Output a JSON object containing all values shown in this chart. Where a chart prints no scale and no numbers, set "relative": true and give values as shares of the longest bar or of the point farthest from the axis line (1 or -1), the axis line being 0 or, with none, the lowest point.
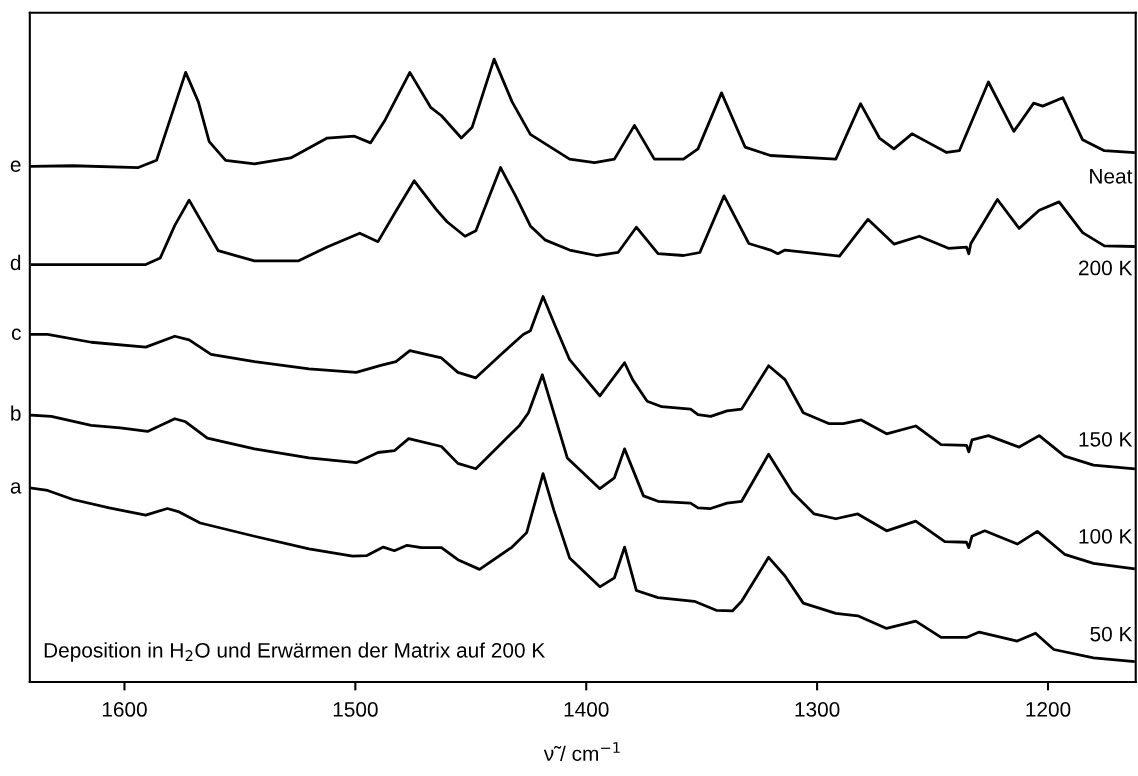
{
  "chart_data": {
    "type": "line",
    "relative": true,
    "xlabel": "ν̃ / cm$^{−1}$",
    "xlim": [
      1641,
      1162
    ],
    "xticks": [
      1600,
      1500,
      1400,
      1300,
      1200
    ],
    "grid": false,
    "legend": false,
    "marker": "none",
    "line_style": "solid",
    "tick_labels": "x",
    "series": [
      {
        "name": "e",
        "color": "#000000",
        "x": [
          1640.3,
          1622.3,
          1594.0,
          1586.1,
          1579.8,
          1573.5,
          1568.0,
          1563.3,
          1556.2,
          1543.7,
          1528.0,
          1512.2,
          1500.4,
          1493.4,
          1487.1,
          1476.4,
          1467.4,
          1462.7,
          1454.1,
          1449.4,
          1439.9,
          1432.1,
          1424.2,
          1407.2,
          1396.4,
          1387.8,
          1379.1,
          1370.5,
          1357.9,
          1351.6,
          1341.4,
          1331.2,
          1320.2,
          1291.9,
          1281.2,
          1273.0,
          1266.7,
          1258.9,
          1252.6,
          1243.9,
          1238.4,
          1225.8,
          1214.8,
          1206.2,
          1202.3,
          1193.6,
          1185.0,
          1175.6,
          1163.0
        ],
        "values": [
          0.822,
          0.823,
          0.82,
          0.832,
          0.905,
          0.978,
          0.929,
          0.863,
          0.832,
          0.826,
          0.836,
          0.869,
          0.872,
          0.861,
          0.899,
          0.978,
          0.92,
          0.906,
          0.869,
          0.887,
          1.0,
          0.929,
          0.875,
          0.834,
          0.828,
          0.834,
          0.89,
          0.834,
          0.834,
          0.851,
          0.944,
          0.854,
          0.84,
          0.834,
          0.926,
          0.869,
          0.851,
          0.876,
          0.863,
          0.845,
          0.848,
          0.962,
          0.88,
          0.927,
          0.922,
          0.936,
          0.866,
          0.848,
          0.845
        ]
      },
      {
        "name": "d",
        "color": "#000000",
        "x": [
          1639.9,
          1622.3,
          1590.8,
          1584.5,
          1578.2,
          1572.0,
          1565.7,
          1559.4,
          1543.7,
          1524.8,
          1512.2,
          1498.1,
          1490.2,
          1482.4,
          1474.5,
          1465.1,
          1460.3,
          1452.5,
          1447.8,
          1437.1,
          1430.5,
          1424.2,
          1417.9,
          1407.2,
          1395.6,
          1386.2,
          1378.3,
          1368.9,
          1357.9,
          1350.8,
          1340.3,
          1329.6,
          1320.2,
          1317.0,
          1313.9,
          1290.3,
          1278.0,
          1266.7,
          1255.7,
          1243.1,
          1235.3,
          1234.3,
          1233.4,
          1221.9,
          1212.5,
          1203.8,
          1195.2,
          1185.0,
          1175.6,
          1163.0
        ],
        "values": [
          0.659,
          0.659,
          0.659,
          0.67,
          0.724,
          0.766,
          0.724,
          0.682,
          0.665,
          0.665,
          0.688,
          0.711,
          0.697,
          0.748,
          0.798,
          0.751,
          0.73,
          0.706,
          0.715,
          0.82,
          0.772,
          0.723,
          0.7,
          0.683,
          0.674,
          0.679,
          0.721,
          0.677,
          0.674,
          0.679,
          0.773,
          0.694,
          0.683,
          0.677,
          0.683,
          0.673,
          0.734,
          0.693,
          0.706,
          0.686,
          0.688,
          0.677,
          0.694,
          0.767,
          0.719,
          0.749,
          0.763,
          0.712,
          0.69,
          0.689
        ]
      },
      {
        "name": "c",
        "color": "#000000",
        "x": [
          1640.3,
          1633.3,
          1614.4,
          1590.8,
          1578.2,
          1572.0,
          1562.5,
          1543.7,
          1520.1,
          1499.6,
          1488.6,
          1482.4,
          1476.4,
          1462.7,
          1455.6,
          1447.8,
          1436.8,
          1427.3,
          1424.2,
          1418.7,
          1413.2,
          1407.2,
          1394.1,
          1383.4,
          1379.9,
          1373.6,
          1367.3,
          1354.8,
          1351.6,
          1346.1,
          1339.0,
          1332.7,
          1321.0,
          1313.9,
          1306.0,
          1295.0,
          1288.7,
          1280.9,
          1269.9,
          1257.3,
          1246.3,
          1235.3,
          1234.3,
          1232.9,
          1225.8,
          1212.5,
          1203.8,
          1192.8,
          1180.3,
          1163.0
        ],
        "values": [
          0.543,
          0.543,
          0.53,
          0.522,
          0.54,
          0.534,
          0.51,
          0.498,
          0.486,
          0.48,
          0.492,
          0.498,
          0.516,
          0.504,
          0.48,
          0.471,
          0.51,
          0.543,
          0.549,
          0.606,
          0.555,
          0.501,
          0.441,
          0.496,
          0.468,
          0.432,
          0.423,
          0.419,
          0.41,
          0.407,
          0.416,
          0.419,
          0.491,
          0.468,
          0.413,
          0.395,
          0.395,
          0.401,
          0.378,
          0.391,
          0.36,
          0.359,
          0.348,
          0.368,
          0.375,
          0.356,
          0.375,
          0.341,
          0.326,
          0.32
        ]
      },
      {
        "name": "b",
        "color": "#000000",
        "x": [
          1640.3,
          1631.7,
          1614.4,
          1601.8,
          1590.0,
          1578.2,
          1573.5,
          1564.1,
          1543.7,
          1520.1,
          1499.6,
          1490.2,
          1483.1,
          1476.9,
          1462.7,
          1455.6,
          1447.8,
          1436.8,
          1428.9,
          1425.0,
          1419.0,
          1408.2,
          1394.1,
          1387.8,
          1383.4,
          1375.2,
          1368.9,
          1354.8,
          1351.6,
          1346.1,
          1339.0,
          1332.7,
          1321.0,
          1310.7,
          1301.3,
          1291.9,
          1282.4,
          1269.9,
          1257.3,
          1244.7,
          1235.3,
          1234.3,
          1232.9,
          1227.4,
          1213.3,
          1204.6,
          1192.8,
          1180.3,
          1163.0
        ],
        "values": [
          0.409,
          0.407,
          0.392,
          0.388,
          0.382,
          0.403,
          0.398,
          0.371,
          0.353,
          0.338,
          0.33,
          0.347,
          0.35,
          0.37,
          0.357,
          0.329,
          0.32,
          0.362,
          0.392,
          0.413,
          0.476,
          0.338,
          0.287,
          0.305,
          0.353,
          0.275,
          0.266,
          0.263,
          0.255,
          0.254,
          0.263,
          0.266,
          0.344,
          0.281,
          0.245,
          0.237,
          0.245,
          0.217,
          0.233,
          0.199,
          0.198,
          0.189,
          0.208,
          0.217,
          0.195,
          0.216,
          0.178,
          0.163,
          0.154
        ]
      },
      {
        "name": "a",
        "color": "#000000",
        "x": [
          1640.3,
          1633.3,
          1622.3,
          1606.6,
          1590.8,
          1581.4,
          1576.7,
          1567.2,
          1543.7,
          1520.1,
          1501.2,
          1495.0,
          1487.9,
          1483.1,
          1477.6,
          1471.4,
          1462.7,
          1455.6,
          1446.2,
          1432.1,
          1425.8,
          1418.7,
          1414.0,
          1407.2,
          1394.1,
          1387.8,
          1383.4,
          1378.3,
          1368.9,
          1353.2,
          1343.7,
          1336.7,
          1332.7,
          1321.0,
          1313.9,
          1306.0,
          1291.9,
          1282.4,
          1269.9,
          1257.3,
          1246.3,
          1235.3,
          1229.8,
          1213.3,
          1205.4,
          1197.5,
          1180.3,
          1163.0
        ],
        "values": [
          0.288,
          0.284,
          0.269,
          0.255,
          0.243,
          0.254,
          0.249,
          0.23,
          0.208,
          0.187,
          0.175,
          0.176,
          0.19,
          0.184,
          0.193,
          0.189,
          0.189,
          0.169,
          0.153,
          0.19,
          0.214,
          0.312,
          0.251,
          0.172,
          0.124,
          0.139,
          0.19,
          0.118,
          0.106,
          0.1,
          0.085,
          0.084,
          0.1,
          0.173,
          0.142,
          0.097,
          0.08,
          0.076,
          0.055,
          0.067,
          0.04,
          0.04,
          0.049,
          0.034,
          0.047,
          0.02,
          0.006,
          0.0
        ]
      }
    ],
    "annotations": [
      "Neat",
      "200 K",
      "150 K",
      "100 K",
      "50 K",
      "Deposition in H$_{2}$O und Erwärmen der Matrix auf 200 K"
    ]
  }
}
